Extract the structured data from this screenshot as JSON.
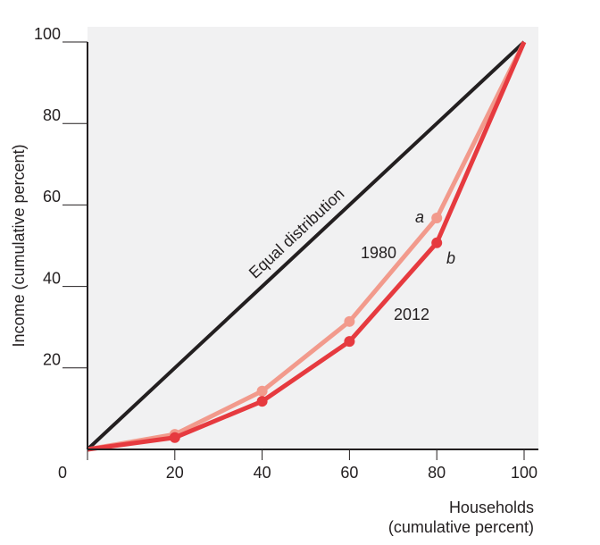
{
  "chart_data": {
    "type": "line",
    "x": [
      0,
      20,
      40,
      60,
      80,
      100
    ],
    "series": [
      {
        "name": "Equal distribution",
        "color": "#231f20",
        "values": [
          0,
          20,
          40,
          60,
          80,
          100
        ]
      },
      {
        "name": "1980",
        "color": "#f29a8c",
        "values": [
          0,
          3.7,
          14.3,
          31.4,
          56.8,
          100
        ]
      },
      {
        "name": "2012",
        "color": "#e63a3f",
        "values": [
          0,
          2.9,
          11.8,
          26.5,
          50.7,
          100
        ]
      }
    ],
    "xlim": [
      0,
      100
    ],
    "xticks": [
      0,
      20,
      40,
      60,
      80,
      100
    ],
    "ylim": [
      0,
      100
    ],
    "yticks": [
      20,
      40,
      60,
      80,
      100
    ],
    "x_label": [
      "Households",
      "(cumulative percent)"
    ],
    "y_label": "Income (cumulative percent)",
    "annotations": [
      "a",
      "b"
    ]
  }
}
